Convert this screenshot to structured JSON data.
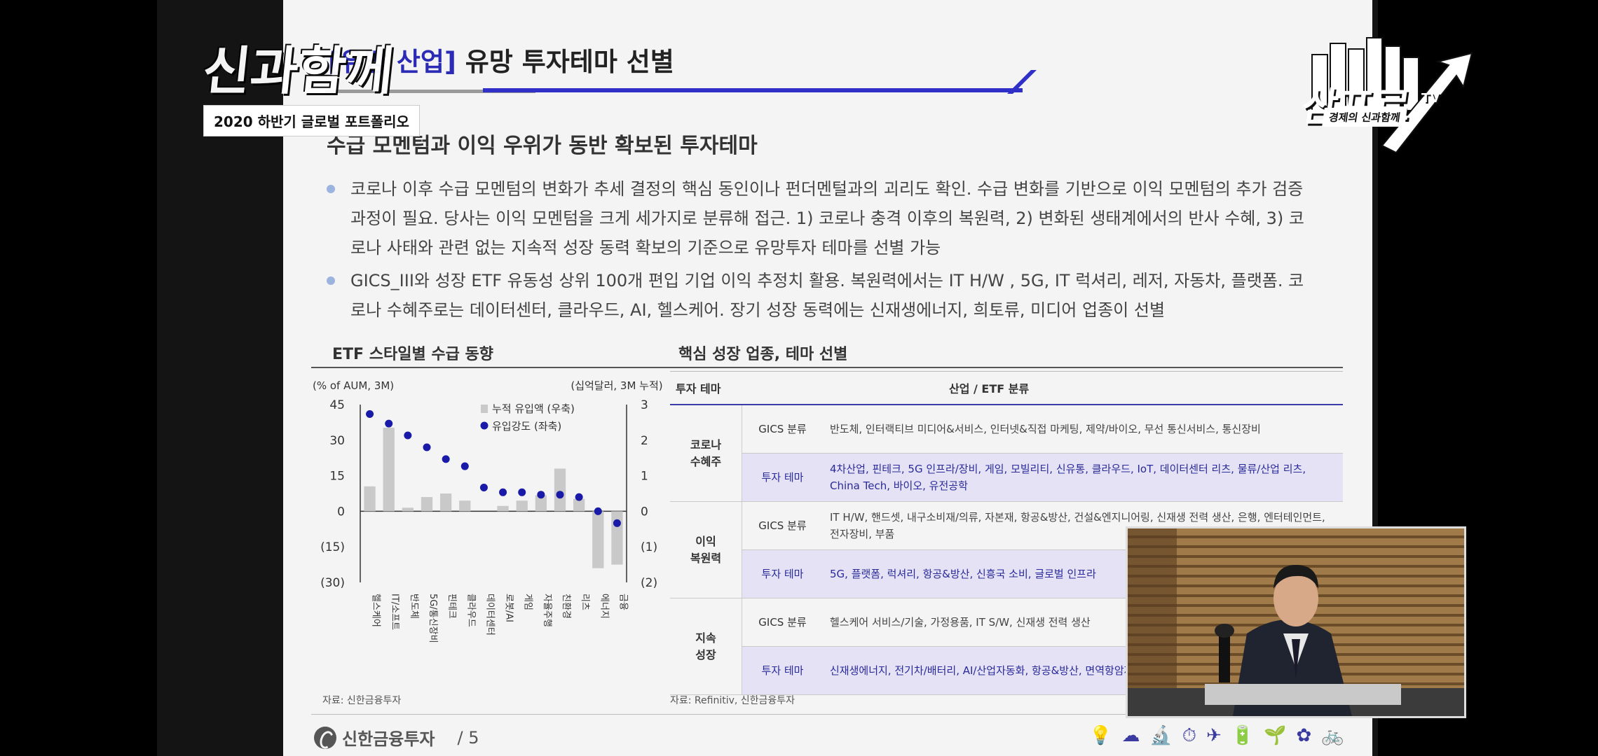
{
  "overlay": {
    "show_logo": "신과함께",
    "caption": "2020 하반기 글로벌 포트폴리오",
    "tv_logo_main": "삼프로",
    "tv_logo_tv": "TV",
    "tv_logo_sub": "경제의 신과함께"
  },
  "slide": {
    "title_tag": "[유망 산업]",
    "title": " 유망 투자테마 선별",
    "subtitle": "수급 모멘텀과 이익 우위가 동반 확보된 투자테마",
    "bullets": [
      "코로나 이후 수급 모멘텀의 변화가 추세 결정의 핵심 동인이나 펀더멘털과의 괴리도 확인. 수급 변화를 기반으로 이익 모멘텀의 추가 검증 과정이 필요. 당사는 이익 모멘텀을 크게 세가지로 분류해 접근. 1) 코로나 충격 이후의 복원력, 2) 변화된 생태계에서의 반사 수혜, 3) 코로나 사태와 관련 없는 지속적 성장 동력 확보의 기준으로 유망투자 테마를 선별 가능",
      "GICS_III와 성장 ETF 유동성 상위 100개 편입 기업 이익 추정치 활용. 복원력에서는 IT H/W , 5G, IT 럭셔리, 레저, 자동차, 플랫폼. 코로나 수혜주로는 데이터센터, 클라우드, AI, 헬스케어. 장기 성장 동력에는 신재생에너지, 희토류, 미디어 업종이 선별"
    ],
    "left_panel_title": "ETF 스타일별 수급 동향",
    "right_panel_title": "핵심 성장 업종, 테마 선별",
    "left_source": "자료: 신한금융투자",
    "right_source": "자료: Refinitiv, 신한금융투자",
    "footer_brand": "신한금융투자",
    "page_number": "/ 5",
    "footer_icons": "💡☁🔬⏱✈🔋🌱✿🚲"
  },
  "chart_data": {
    "type": "bar",
    "left_unit": "(% of AUM, 3M)",
    "right_unit": "(십억달러, 3M 누적)",
    "left_ticks": [
      "45",
      "30",
      "15",
      "0",
      "(15)",
      "(30)"
    ],
    "right_ticks": [
      "3",
      "2",
      "1",
      "0",
      "(1)",
      "(2)"
    ],
    "ylim_left": [
      -30,
      45
    ],
    "ylim_right": [
      -2,
      3
    ],
    "categories": [
      "헬스케어",
      "IT/소프트",
      "반도체",
      "5G/통신장비",
      "핀테크",
      "클라우드",
      "데이터센터",
      "로봇/AI",
      "게임",
      "자율주행",
      "친환경",
      "리츠",
      "에너지",
      "금융"
    ],
    "series": [
      {
        "name": "누적 유입액 (우축)",
        "type": "bar",
        "axis": "right",
        "color": "#c9c9c9",
        "values": [
          0.7,
          2.35,
          0.1,
          0.4,
          0.5,
          0.3,
          0.0,
          0.15,
          0.3,
          0.45,
          1.2,
          0.35,
          -1.6,
          -1.5
        ]
      },
      {
        "name": "유입강도 (좌축)",
        "type": "scatter",
        "axis": "left",
        "color": "#1a1aa8",
        "values": [
          41,
          37,
          32,
          27,
          22,
          19,
          10,
          8,
          8,
          7,
          7,
          6,
          0,
          -5
        ]
      }
    ],
    "legend": "top-right"
  },
  "table": {
    "headers": [
      "투자 테마",
      "산업 / ETF 분류"
    ],
    "groups": [
      {
        "name": "코로나\n수혜주",
        "rows": [
          {
            "cat": "GICS 분류",
            "items": "반도체, 인터랙티브 미디어&서비스, 인터넷&직접 마케팅, 제약/바이오, 무선 통신서비스, 통신장비",
            "hl": false
          },
          {
            "cat": "투자 테마",
            "items": "4차산업, 핀테크, 5G 인프라/장비, 게임, 모빌리티, 신유통, 클라우드, IoT, 데이터센터 리츠, 물류/산업 리츠, China Tech, 바이오, 유전공학",
            "hl": true
          }
        ]
      },
      {
        "name": "이익\n복원력",
        "rows": [
          {
            "cat": "GICS 분류",
            "items": "IT H/W, 핸드셋, 내구소비재/의류, 자본재, 항공&방산, 건설&엔지니어링, 신재생 전력 생산, 은행, 엔터테인먼트, 전자장비, 부품",
            "hl": false
          },
          {
            "cat": "투자 테마",
            "items": "5G, 플랫폼, 럭셔리, 항공&방산, 신흥국 소비, 글로벌 인프라",
            "hl": true
          }
        ]
      },
      {
        "name": "지속\n성장",
        "rows": [
          {
            "cat": "GICS 분류",
            "items": "헬스케어 서비스/기술, 가정용품, IT S/W, 신재생 전력 생산",
            "hl": false
          },
          {
            "cat": "투자 테마",
            "items": "신재생에너지, 전기차/배터리, AI/산업자동화, 항공&방산, 면역항암제, 블록체인, 보안, 우주산업, 헬스&웰빙",
            "hl": true
          }
        ]
      }
    ]
  }
}
